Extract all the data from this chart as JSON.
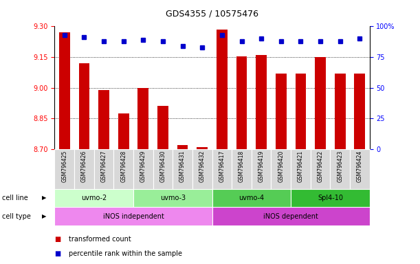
{
  "title": "GDS4355 / 10575476",
  "samples": [
    "GSM796425",
    "GSM796426",
    "GSM796427",
    "GSM796428",
    "GSM796429",
    "GSM796430",
    "GSM796431",
    "GSM796432",
    "GSM796417",
    "GSM796418",
    "GSM796419",
    "GSM796420",
    "GSM796421",
    "GSM796422",
    "GSM796423",
    "GSM796424"
  ],
  "bar_values": [
    9.27,
    9.12,
    8.99,
    8.875,
    9.0,
    8.91,
    8.72,
    8.71,
    9.285,
    9.155,
    9.16,
    9.07,
    9.07,
    9.15,
    9.07,
    9.07
  ],
  "percentile_values": [
    93,
    91,
    88,
    88,
    89,
    88,
    84,
    83,
    93,
    88,
    90,
    88,
    88,
    88,
    88,
    90
  ],
  "ylim": [
    8.7,
    9.3
  ],
  "y2lim": [
    0,
    100
  ],
  "yticks": [
    8.7,
    8.85,
    9.0,
    9.15,
    9.3
  ],
  "y2ticks": [
    0,
    25,
    50,
    75,
    100
  ],
  "bar_color": "#cc0000",
  "dot_color": "#0000cc",
  "bar_bottom": 8.7,
  "cell_lines": [
    {
      "label": "uvmo-2",
      "start": 0,
      "end": 3,
      "color": "#ccffcc"
    },
    {
      "label": "uvmo-3",
      "start": 4,
      "end": 7,
      "color": "#99ee99"
    },
    {
      "label": "uvmo-4",
      "start": 8,
      "end": 11,
      "color": "#55cc55"
    },
    {
      "label": "Spl4-10",
      "start": 12,
      "end": 15,
      "color": "#33bb33"
    }
  ],
  "cell_types": [
    {
      "label": "iNOS independent",
      "start": 0,
      "end": 7,
      "color": "#ee88ee"
    },
    {
      "label": "iNOS dependent",
      "start": 8,
      "end": 15,
      "color": "#cc44cc"
    }
  ],
  "legend_items": [
    {
      "label": "transformed count",
      "color": "#cc0000"
    },
    {
      "label": "percentile rank within the sample",
      "color": "#0000cc"
    }
  ],
  "title_fontsize": 9,
  "tick_fontsize": 7,
  "sample_fontsize": 5.5,
  "row_label_fontsize": 7,
  "cell_fontsize": 7,
  "legend_fontsize": 7
}
